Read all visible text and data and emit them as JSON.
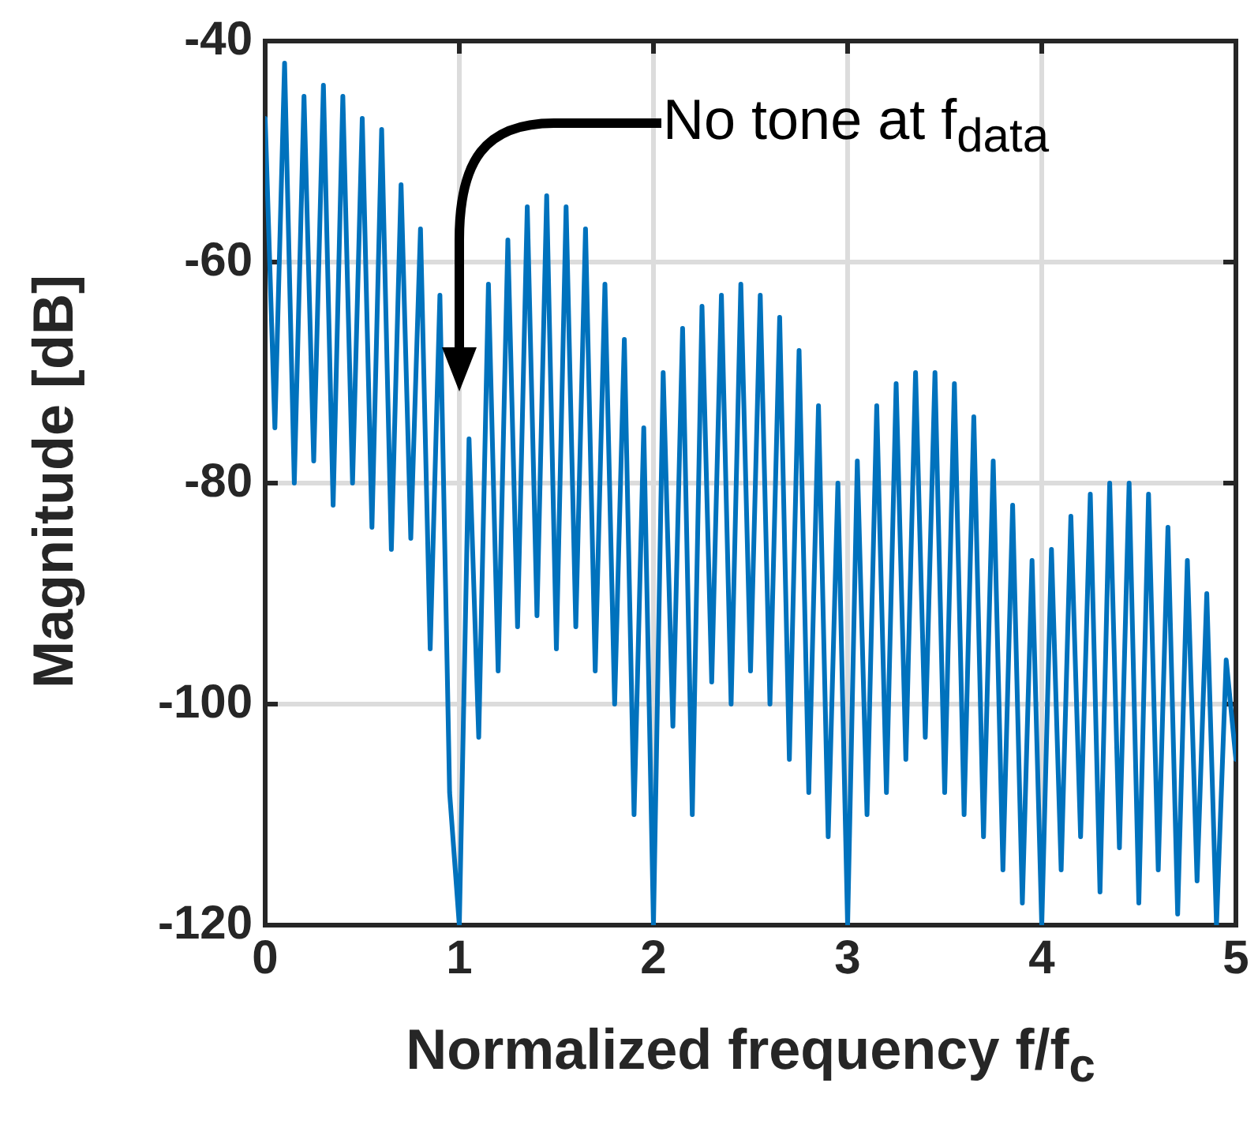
{
  "chart_data": {
    "type": "line",
    "xlabel": "Normalized frequency f/f$_{c}$",
    "ylabel": "Magnitude [dB]",
    "xlim": [
      0,
      5
    ],
    "xticks": [
      0,
      1,
      2,
      3,
      4,
      5
    ],
    "ylim": [
      -120,
      -40
    ],
    "yticks": [
      -120,
      -100,
      -80,
      -60,
      -40
    ],
    "grid": true,
    "marker": "none",
    "line_style": "solid",
    "annotations": [
      "No tone at f$_{data}$"
    ],
    "series": [
      {
        "color": "#0072bd",
        "x": [
          0,
          0.05,
          0.1,
          0.15,
          0.2,
          0.25,
          0.3,
          0.35,
          0.4,
          0.45,
          0.5,
          0.55,
          0.6,
          0.65,
          0.7,
          0.75,
          0.8,
          0.85,
          0.9,
          0.95,
          1.0,
          1.05,
          1.1,
          1.15,
          1.2,
          1.25,
          1.3,
          1.35,
          1.4,
          1.45,
          1.5,
          1.55,
          1.6,
          1.65,
          1.7,
          1.75,
          1.8,
          1.85,
          1.9,
          1.95,
          2.0,
          2.05,
          2.1,
          2.15,
          2.2,
          2.25,
          2.3,
          2.35,
          2.4,
          2.45,
          2.5,
          2.55,
          2.6,
          2.65,
          2.7,
          2.75,
          2.8,
          2.85,
          2.9,
          2.95,
          3.0,
          3.05,
          3.1,
          3.15,
          3.2,
          3.25,
          3.3,
          3.35,
          3.4,
          3.45,
          3.5,
          3.55,
          3.6,
          3.65,
          3.7,
          3.75,
          3.8,
          3.85,
          3.9,
          3.95,
          4.0,
          4.05,
          4.1,
          4.15,
          4.2,
          4.25,
          4.3,
          4.35,
          4.4,
          4.45,
          4.5,
          4.55,
          4.6,
          4.65,
          4.7,
          4.75,
          4.8,
          4.85,
          4.9,
          4.95,
          5.0
        ],
        "values": [
          -47,
          -75,
          -42,
          -80,
          -45,
          -78,
          -44,
          -82,
          -45,
          -80,
          -47,
          -84,
          -48,
          -86,
          -53,
          -85,
          -57,
          -95,
          -63,
          -108,
          -120,
          -76,
          -103,
          -62,
          -97,
          -58,
          -93,
          -55,
          -92,
          -54,
          -95,
          -55,
          -93,
          -57,
          -97,
          -62,
          -100,
          -67,
          -110,
          -75,
          -120,
          -70,
          -102,
          -66,
          -110,
          -64,
          -98,
          -63,
          -100,
          -62,
          -97,
          -63,
          -100,
          -65,
          -105,
          -68,
          -108,
          -73,
          -112,
          -80,
          -120,
          -78,
          -110,
          -73,
          -108,
          -71,
          -105,
          -70,
          -103,
          -70,
          -108,
          -71,
          -110,
          -74,
          -112,
          -78,
          -115,
          -82,
          -118,
          -87,
          -120,
          -86,
          -115,
          -83,
          -112,
          -81,
          -117,
          -80,
          -113,
          -80,
          -118,
          -81,
          -115,
          -84,
          -119,
          -87,
          -116,
          -90,
          -120,
          -96,
          -105
        ]
      }
    ]
  }
}
